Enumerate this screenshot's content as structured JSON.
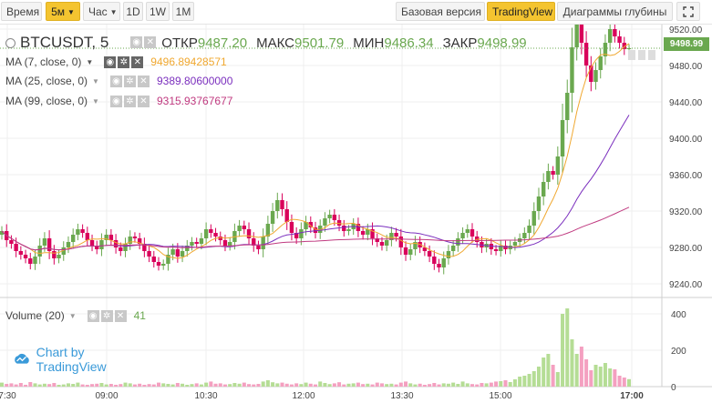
{
  "toolbar": {
    "time_label": "Время",
    "interval_label": "5м",
    "hour_label": "Час",
    "d1_label": "1D",
    "w1_label": "1W",
    "m1_label": "1M",
    "basic_label": "Базовая версия",
    "tv_label": "TradingView",
    "depth_label": "Диаграммы глубины",
    "expand_icon": "expand-icon"
  },
  "legend": {
    "symbol": "BTCUSDT, 5",
    "open_label": "ОТКР",
    "open_value": "9487.20",
    "high_label": "МАКС",
    "high_value": "9501.79",
    "low_label": "МИН",
    "low_value": "9486.34",
    "close_label": "ЗАКР",
    "close_value": "9498.99"
  },
  "ma": [
    {
      "label": "MA (7, close, 0)",
      "value": "9496.89428571",
      "color": "#f0a830"
    },
    {
      "label": "MA (25, close, 0)",
      "value": "9389.80600000",
      "color": "#7b2fbe"
    },
    {
      "label": "MA (99, close, 0)",
      "value": "9315.93767677",
      "color": "#c03a80"
    }
  ],
  "volume": {
    "label": "Volume (20)",
    "value": "41"
  },
  "branding": "Chart by TradingView",
  "price_tag": "9498.99",
  "colors": {
    "up": "#6aa84f",
    "down": "#d9005b",
    "up_vol": "#b5dd95",
    "down_vol": "#f4a0c0",
    "accent": "#f4c430"
  },
  "chart_data": {
    "type": "candlestick",
    "y_ticks": [
      "9520.00",
      "9480.00",
      "9440.00",
      "9400.00",
      "9360.00",
      "9320.00",
      "9280.00",
      "9240.00"
    ],
    "volume_ticks": [
      "400",
      "200",
      "0"
    ],
    "x_ticks": [
      "7:30",
      "09:00",
      "10:30",
      "12:00",
      "13:30",
      "15:00",
      "17:00"
    ],
    "ylim": [
      9225,
      9525
    ],
    "vol_ylim": [
      0,
      430
    ],
    "closes": [
      9298,
      9288,
      9284,
      9276,
      9272,
      9268,
      9262,
      9270,
      9282,
      9290,
      9276,
      9268,
      9272,
      9280,
      9286,
      9294,
      9300,
      9296,
      9288,
      9282,
      9278,
      9288,
      9294,
      9288,
      9280,
      9276,
      9284,
      9292,
      9290,
      9284,
      9276,
      9270,
      9264,
      9260,
      9262,
      9272,
      9278,
      9270,
      9276,
      9282,
      9286,
      9284,
      9290,
      9300,
      9296,
      9292,
      9288,
      9282,
      9286,
      9298,
      9304,
      9300,
      9290,
      9282,
      9278,
      9292,
      9306,
      9320,
      9332,
      9322,
      9308,
      9296,
      9290,
      9300,
      9308,
      9302,
      9296,
      9304,
      9312,
      9316,
      9310,
      9304,
      9298,
      9300,
      9306,
      9298,
      9294,
      9300,
      9290,
      9286,
      9282,
      9288,
      9296,
      9292,
      9280,
      9272,
      9278,
      9286,
      9280,
      9276,
      9270,
      9262,
      9258,
      9268,
      9276,
      9282,
      9290,
      9296,
      9300,
      9292,
      9286,
      9280,
      9284,
      9278,
      9276,
      9282,
      9278,
      9282,
      9286,
      9290,
      9296,
      9304,
      9320,
      9336,
      9352,
      9364,
      9360,
      9380,
      9420,
      9450,
      9500,
      9530,
      9505,
      9480,
      9462,
      9475,
      9490,
      9505,
      9520,
      9512,
      9505,
      9498,
      9499
    ],
    "volumes": [
      22,
      15,
      18,
      12,
      20,
      10,
      25,
      18,
      12,
      16,
      14,
      20,
      10,
      12,
      18,
      15,
      22,
      12,
      10,
      14,
      16,
      20,
      12,
      15,
      10,
      14,
      22,
      18,
      12,
      16,
      10,
      14,
      12,
      22,
      18,
      15,
      12,
      20,
      16,
      10,
      14,
      18,
      12,
      22,
      28,
      16,
      18,
      12,
      14,
      20,
      16,
      22,
      14,
      12,
      15,
      28,
      35,
      24,
      18,
      22,
      16,
      12,
      18,
      14,
      22,
      16,
      12,
      28,
      20,
      14,
      18,
      24,
      12,
      16,
      18,
      22,
      14,
      16,
      12,
      22,
      18,
      14,
      16,
      12,
      22,
      28,
      18,
      12,
      16,
      10,
      14,
      20,
      12,
      18,
      16,
      22,
      15,
      28,
      18,
      14,
      12,
      20,
      18,
      22,
      28,
      30,
      35,
      25,
      40,
      55,
      60,
      70,
      85,
      110,
      160,
      180,
      120,
      80,
      400,
      430,
      260,
      180,
      220,
      150,
      90,
      120,
      110,
      130,
      100,
      95,
      60,
      50,
      41
    ]
  }
}
